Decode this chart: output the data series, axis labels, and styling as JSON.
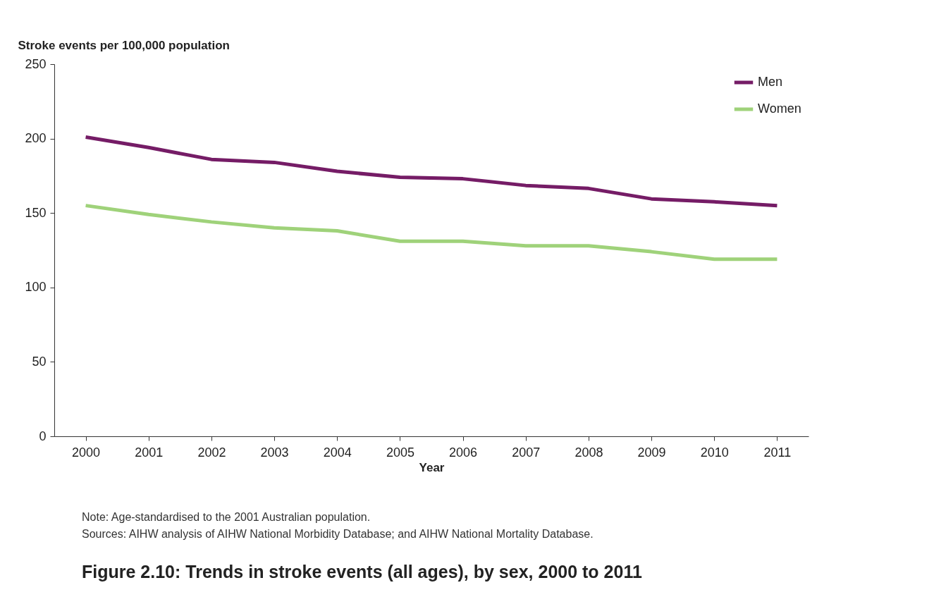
{
  "chart_data": {
    "type": "line",
    "title": "Figure 2.10: Trends in stroke events (all ages), by sex, 2000 to 2011",
    "xlabel": "Year",
    "ylabel": "Stroke events per 100,000 population",
    "categories": [
      "2000",
      "2001",
      "2002",
      "2003",
      "2004",
      "2005",
      "2006",
      "2007",
      "2008",
      "2009",
      "2010",
      "2011"
    ],
    "series": [
      {
        "name": "Men",
        "color": "#751c66",
        "values": [
          201,
          194,
          186,
          184,
          178,
          174,
          173,
          168.5,
          166.5,
          159.5,
          157.5,
          155
        ]
      },
      {
        "name": "Women",
        "color": "#9fd27a",
        "values": [
          155,
          149,
          144,
          140,
          138,
          131,
          131,
          128,
          128,
          124,
          119,
          119
        ]
      }
    ],
    "ylim": [
      0,
      250
    ],
    "yticks": [
      0,
      50,
      100,
      150,
      200,
      250
    ],
    "grid": false,
    "legend": "top right",
    "line_style": "solid",
    "marker": "none",
    "annotations": [
      "Note: Age-standardised to the 2001 Australian population.",
      "Sources: AIHW analysis of AIHW National Morbidity Database; and AIHW National Mortality Database."
    ]
  }
}
